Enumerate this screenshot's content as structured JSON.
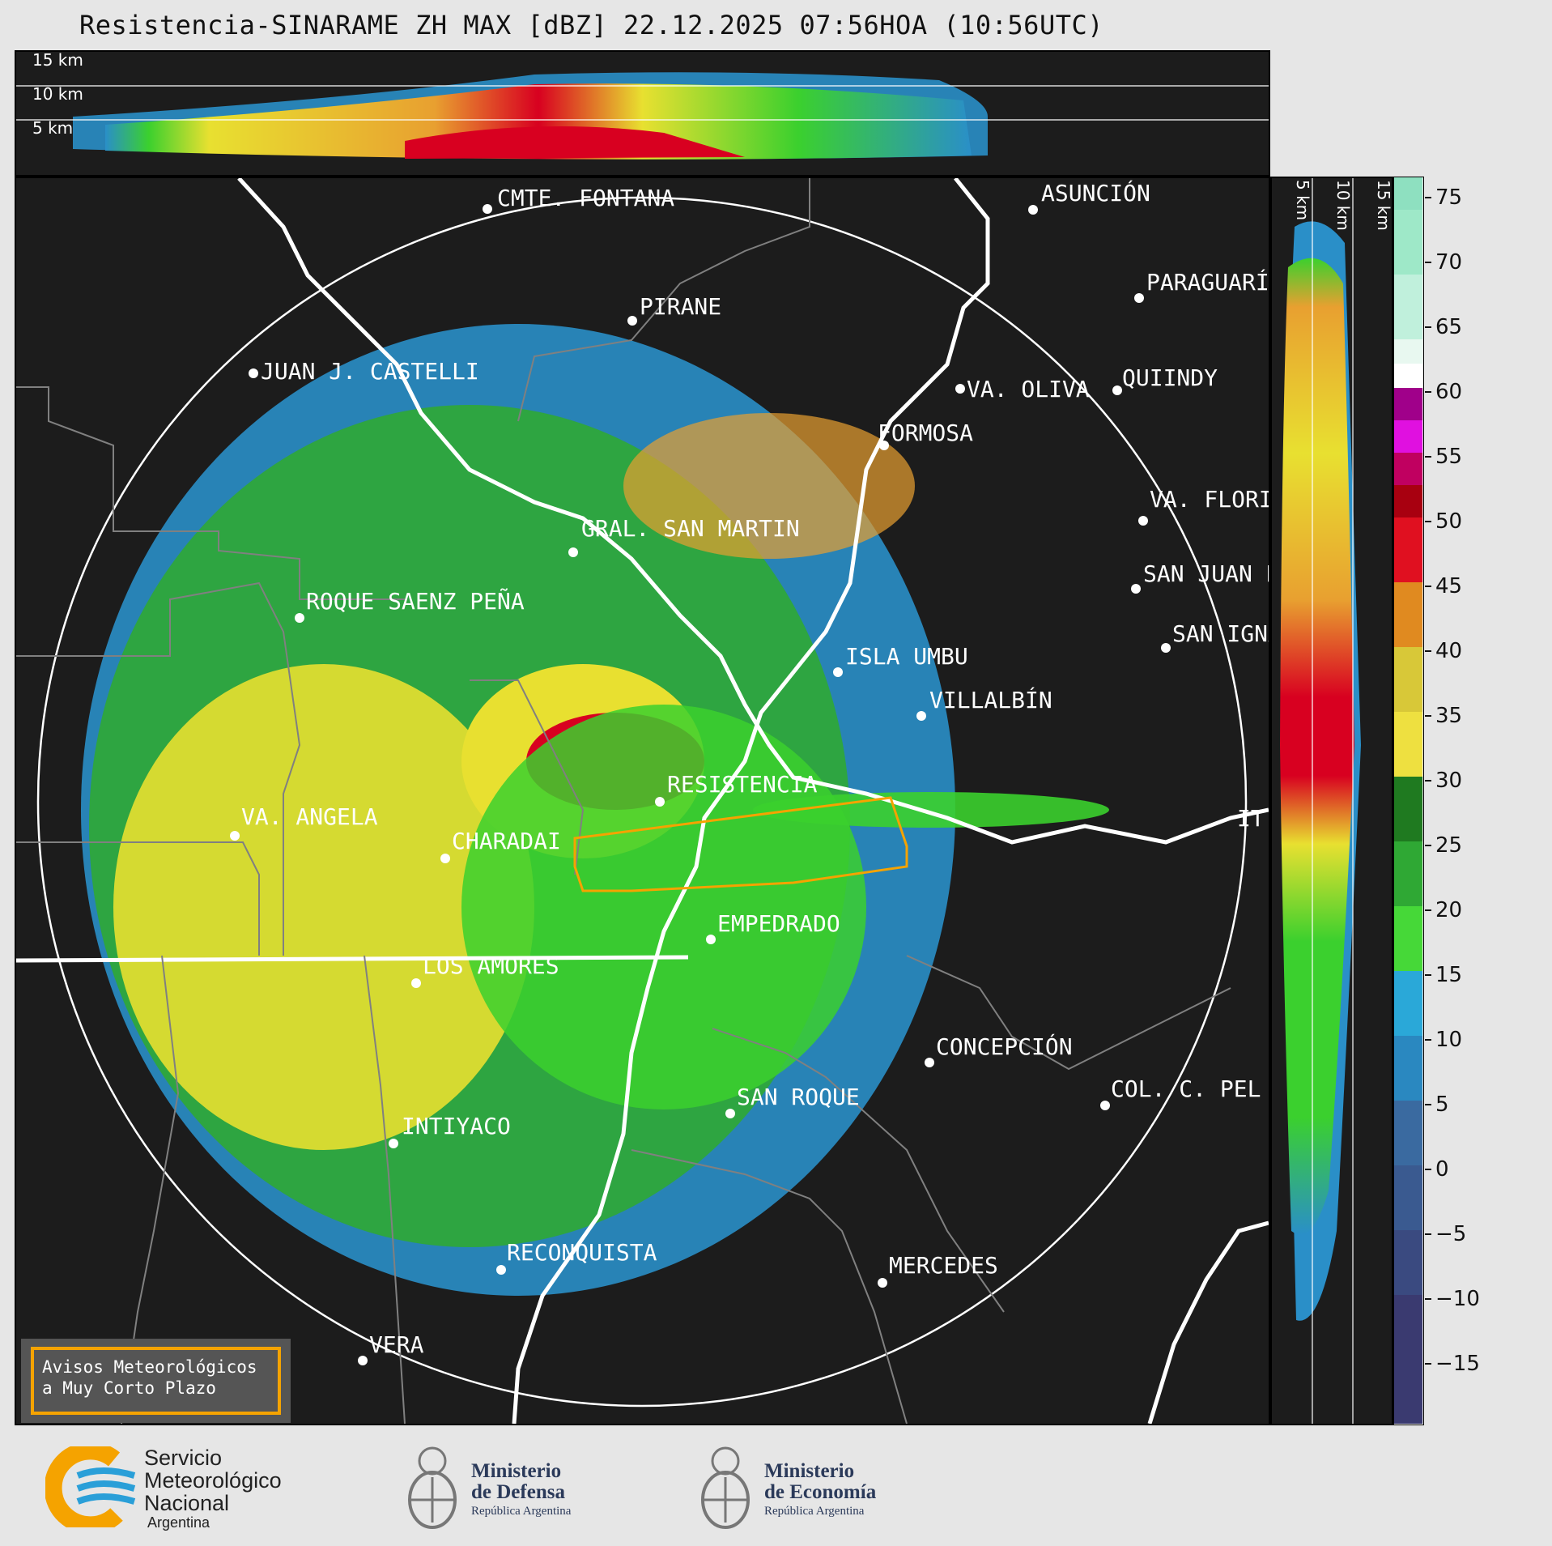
{
  "title": "Resistencia-SINARAME ZH MAX [dBZ] 22.12.2025 07:56HOA (10:56UTC)",
  "top_panel": {
    "altitude_labels": [
      "15 km",
      "10 km",
      "5 km"
    ]
  },
  "side_panel": {
    "altitude_labels": [
      "5 km",
      "10 km",
      "15 km"
    ]
  },
  "colorbar": {
    "ticks": [
      "75",
      "70",
      "65",
      "60",
      "55",
      "50",
      "45",
      "40",
      "35",
      "30",
      "25",
      "20",
      "15",
      "10",
      "5",
      "0",
      "−5",
      "−10",
      "−15"
    ]
  },
  "cities": [
    "CMTE. FONTANA",
    "ASUNCIÓN",
    "PARAGUARÍ",
    "PIRANE",
    "JUAN J. CASTELLI",
    "VA. OLIVA",
    "QUIINDY",
    "FORMOSA",
    "VA. FLORI",
    "GRAL. SAN MARTIN",
    "SAN JUAN B",
    "ROQUE SAENZ PEÑA",
    "SAN IGNA",
    "ISLA UMBU",
    "VILLALBÍN",
    "RESISTENCIA",
    "IT",
    "VA. ANGELA",
    "CHARADAI",
    "EMPEDRADO",
    "LOS AMORES",
    "CONCEPCIÓN",
    "COL. C. PEL",
    "SAN ROQUE",
    "INTIYACO",
    "RECONQUISTA",
    "MERCEDES",
    "VERA"
  ],
  "notice": {
    "line1": "Avisos Meteorológicos",
    "line2": "a Muy Corto Plazo"
  },
  "logos": {
    "smn": {
      "line1": "Servicio",
      "line2": "Meteorológico",
      "line3": "Nacional",
      "line4": "Argentina"
    },
    "defensa": {
      "line1": "Ministerio",
      "line2": "de Defensa",
      "line3": "República Argentina"
    },
    "economia": {
      "line1": "Ministerio",
      "line2": "de Economía",
      "line3": "República Argentina"
    }
  },
  "colors": {
    "background": "#1c1c1c",
    "range_ring": "#ffffff",
    "warning_polygon": "#f5a300",
    "rivers": "#ffffff",
    "borders": "#808080",
    "smn_orange": "#f5a300",
    "smn_blue": "#2a9fd8"
  }
}
